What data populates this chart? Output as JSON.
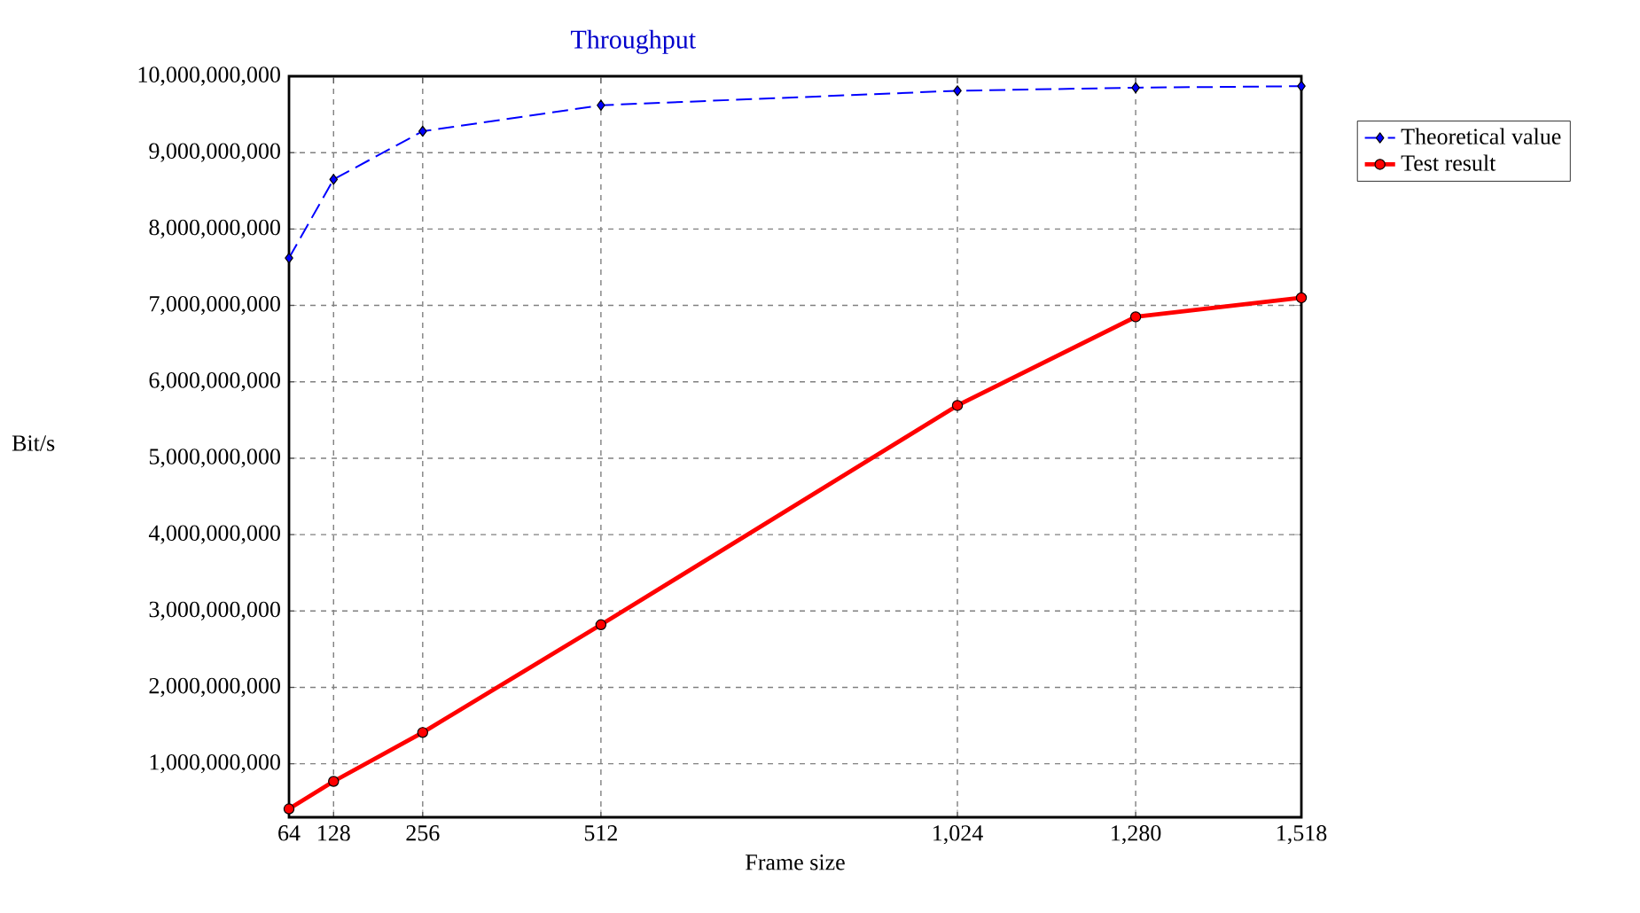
{
  "chart_data": {
    "type": "line",
    "title": "Throughput",
    "xlabel": "Frame size",
    "ylabel": "Bit/s",
    "x": [
      64,
      128,
      256,
      512,
      1024,
      1280,
      1518
    ],
    "series": [
      {
        "name": "Theoretical value",
        "color": "#0000ff",
        "marker": "diamond",
        "line_style": "dashed",
        "values": [
          7620000000,
          8650000000,
          9280000000,
          9620000000,
          9810000000,
          9850000000,
          9870000000
        ]
      },
      {
        "name": "Test result",
        "color": "#ff0000",
        "marker": "circle",
        "line_style": "solid",
        "values": [
          410000000,
          770000000,
          1410000000,
          2820000000,
          5690000000,
          6850000000,
          7100000000
        ]
      }
    ],
    "xlim": [
      64,
      1518
    ],
    "ylim": [
      300000000,
      10000000000
    ],
    "xticks": [
      64,
      128,
      256,
      512,
      {
        "value": 1024,
        "label": "1,024"
      },
      {
        "value": 1280,
        "label": "1,280"
      },
      {
        "value": 1518,
        "label": "1,518"
      }
    ],
    "yticks": [
      {
        "value": 1000000000,
        "label": "1,000,000,000"
      },
      {
        "value": 2000000000,
        "label": "2,000,000,000"
      },
      {
        "value": 3000000000,
        "label": "3,000,000,000"
      },
      {
        "value": 4000000000,
        "label": "4,000,000,000"
      },
      {
        "value": 5000000000,
        "label": "5,000,000,000"
      },
      {
        "value": 6000000000,
        "label": "6,000,000,000"
      },
      {
        "value": 7000000000,
        "label": "7,000,000,000"
      },
      {
        "value": 8000000000,
        "label": "8,000,000,000"
      },
      {
        "value": 9000000000,
        "label": "9,000,000,000"
      },
      {
        "value": 10000000000,
        "label": "10,000,000,000"
      }
    ],
    "grid": true,
    "legend": "top right"
  }
}
